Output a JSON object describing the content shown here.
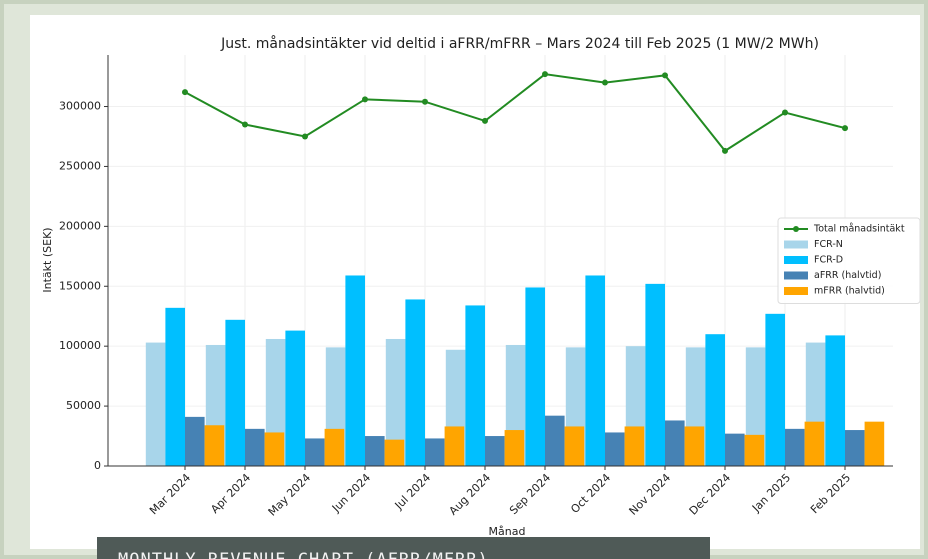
{
  "chart_data": {
    "type": "bar",
    "title": "Just. månadsintäkter vid deltid i aFRR/mFRR – Mars 2024 till Feb 2025 (1 MW/2 MWh)",
    "x_label": "Månad",
    "y_label": "Intäkt (SEK)",
    "categories": [
      "Mar 2024",
      "Apr 2024",
      "May 2024",
      "Jun 2024",
      "Jul 2024",
      "Aug 2024",
      "Sep 2024",
      "Oct 2024",
      "Nov 2024",
      "Dec 2024",
      "Jan 2025",
      "Feb 2025"
    ],
    "series": [
      {
        "name": "Total månadsintäkt",
        "type": "line",
        "color": "#228b22",
        "values": [
          312000,
          285000,
          275000,
          306000,
          304000,
          288000,
          327000,
          320000,
          326000,
          263000,
          295000,
          282000
        ]
      },
      {
        "name": "FCR-N",
        "type": "bar",
        "color": "#a8d5ea",
        "values": [
          103000,
          101000,
          106000,
          99000,
          106000,
          97000,
          101000,
          99000,
          100000,
          99000,
          99000,
          103000
        ]
      },
      {
        "name": "FCR-D",
        "type": "bar",
        "color": "#00bfff",
        "values": [
          132000,
          122000,
          113000,
          159000,
          139000,
          134000,
          149000,
          159000,
          152000,
          110000,
          127000,
          109000
        ]
      },
      {
        "name": "aFRR (halvtid)",
        "type": "bar",
        "color": "#4682b4",
        "values": [
          41000,
          31000,
          23000,
          25000,
          23000,
          25000,
          42000,
          28000,
          38000,
          27000,
          31000,
          30000
        ]
      },
      {
        "name": "mFRR (halvtid)",
        "type": "bar",
        "color": "#ffa500",
        "values": [
          34000,
          28000,
          31000,
          22000,
          33000,
          30000,
          33000,
          33000,
          33000,
          26000,
          37000,
          37000
        ]
      }
    ],
    "ylim": [
      0,
      343000
    ],
    "yticks": [
      0,
      50000,
      100000,
      150000,
      200000,
      250000,
      300000
    ],
    "grid": true,
    "legend": "right"
  },
  "caption": "MONTHLY REVENUE CHART (AFRR/MFRR)"
}
